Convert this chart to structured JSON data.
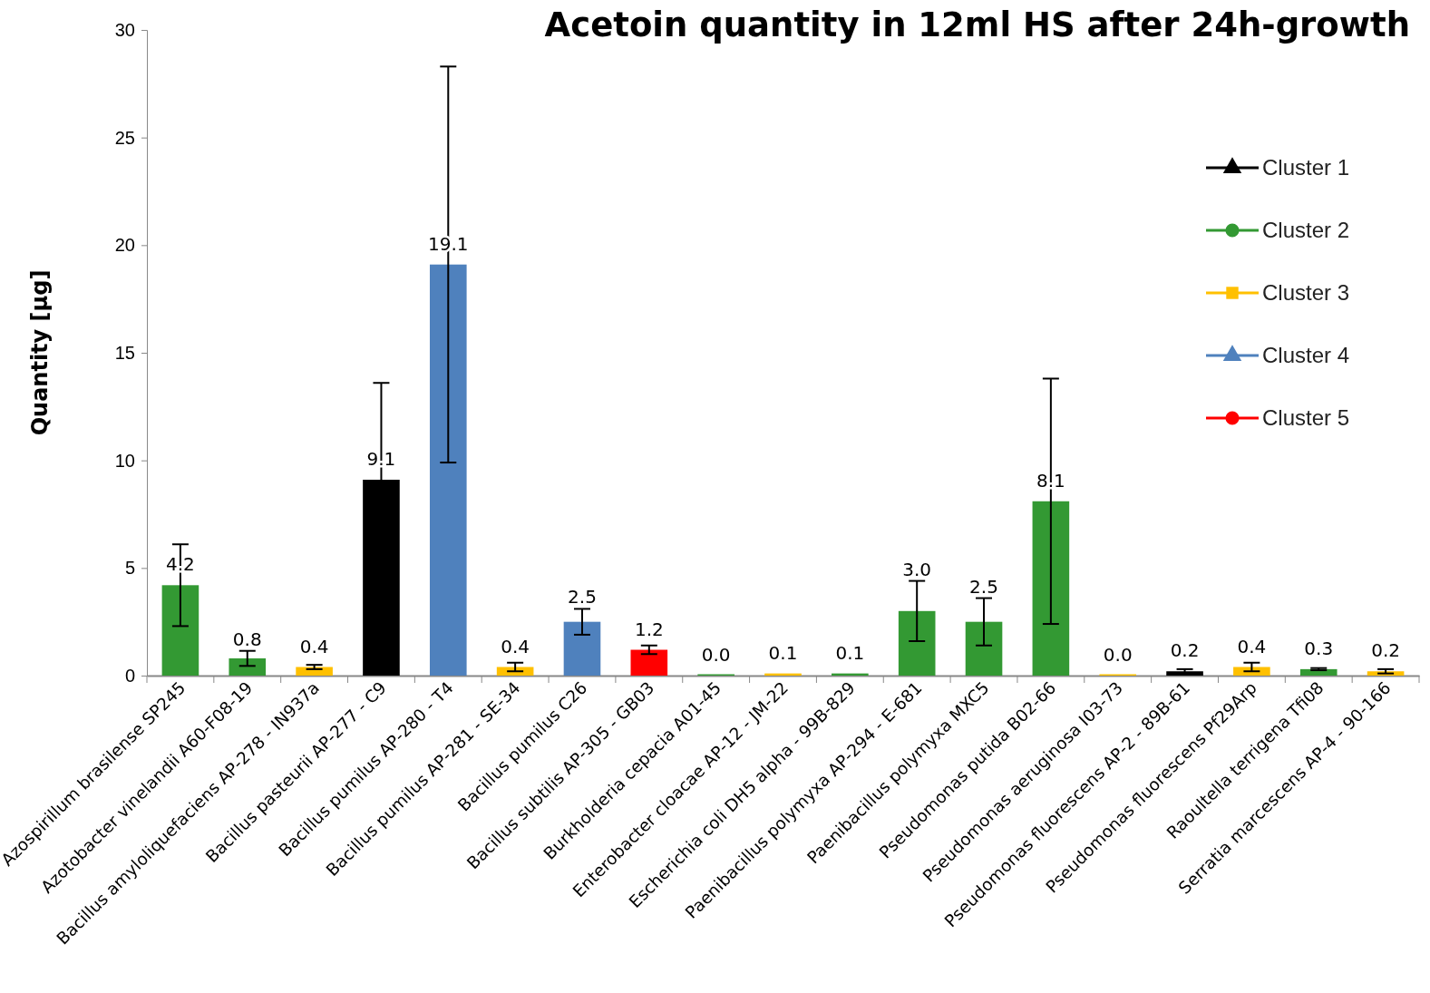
{
  "chart_data": {
    "type": "bar",
    "title": "Acetoin quantity in 12ml HS after 24h-growth",
    "ylabel": "Quantity [µg]",
    "categories": [
      "Azospirillum brasilense SP245",
      "Azotobacter vinelandii A60-F08-19",
      "Bacillus amyloliquefaciens AP-278 - IN937a",
      "Bacillus pasteurii AP-277 - C9",
      "Bacillus pumilus AP-280 - T4",
      "Bacillus pumilus AP-281 - SE-34",
      "Bacillus pumilus C26",
      "Bacillus subtilis AP-305 - GB03",
      "Burkholderia cepacia  A01-45",
      "Enterobacter cloacae AP-12 - JM-22",
      "Escherichia coli DH5 alpha - 99B-829",
      "Paenibacillus polymyxa AP-294 - E-681",
      "Paenibacillus polymyxa MXC5",
      "Pseudomonas putida B02-66",
      "Pseudomonas aeruginosa I03-73",
      "Pseudomonas fluorescens AP-2 - 89B-61",
      "Pseudomonas fluorescens Pf29Arp",
      "Raoultella terrigena Tfi08",
      "Serratia marcescens AP-4 - 90-166"
    ],
    "series": [
      {
        "name": "Cluster 1",
        "color": "#000000",
        "marker": "triangle",
        "values": [
          null,
          null,
          null,
          9.1,
          null,
          null,
          null,
          null,
          null,
          null,
          null,
          null,
          null,
          null,
          null,
          0.2,
          null,
          null,
          null
        ],
        "errors": [
          null,
          null,
          null,
          4.5,
          null,
          null,
          null,
          null,
          null,
          null,
          null,
          null,
          null,
          null,
          null,
          0.1,
          null,
          null,
          null
        ],
        "value_labels": [
          null,
          null,
          null,
          "9.1",
          null,
          null,
          null,
          null,
          null,
          null,
          null,
          null,
          null,
          null,
          null,
          "0.2",
          null,
          null,
          null
        ]
      },
      {
        "name": "Cluster 2",
        "color": "#339933",
        "marker": "circle",
        "values": [
          4.2,
          0.8,
          null,
          null,
          null,
          null,
          null,
          null,
          0.0,
          null,
          0.1,
          3.0,
          2.5,
          8.1,
          null,
          null,
          null,
          0.3,
          null
        ],
        "errors": [
          1.9,
          0.35,
          null,
          null,
          null,
          null,
          null,
          null,
          null,
          null,
          null,
          1.4,
          1.1,
          5.7,
          null,
          null,
          null,
          0.05,
          null
        ],
        "value_labels": [
          "4.2",
          "0.8",
          null,
          null,
          null,
          null,
          null,
          null,
          "0.0",
          null,
          "0.1",
          "3.0",
          "2.5",
          "8.1",
          null,
          null,
          null,
          "0.3",
          null
        ]
      },
      {
        "name": "Cluster 3",
        "color": "#ffc000",
        "marker": "square",
        "values": [
          null,
          null,
          0.4,
          null,
          null,
          0.4,
          null,
          null,
          null,
          0.1,
          null,
          null,
          null,
          null,
          0.0,
          null,
          0.4,
          null,
          0.2
        ],
        "errors": [
          null,
          null,
          0.1,
          null,
          null,
          0.2,
          null,
          null,
          null,
          null,
          null,
          null,
          null,
          null,
          null,
          null,
          0.2,
          null,
          0.1
        ],
        "value_labels": [
          null,
          null,
          "0.4",
          null,
          null,
          "0.4",
          null,
          null,
          null,
          "0.1",
          null,
          null,
          null,
          null,
          "0.0",
          null,
          "0.4",
          null,
          "0.2"
        ]
      },
      {
        "name": "Cluster 4",
        "color": "#4f81bd",
        "marker": "triangle",
        "values": [
          null,
          null,
          null,
          null,
          19.1,
          null,
          2.5,
          null,
          null,
          null,
          null,
          null,
          null,
          null,
          null,
          null,
          null,
          null,
          null
        ],
        "errors": [
          null,
          null,
          null,
          null,
          9.2,
          null,
          0.6,
          null,
          null,
          null,
          null,
          null,
          null,
          null,
          null,
          null,
          null,
          null,
          null
        ],
        "value_labels": [
          null,
          null,
          null,
          null,
          "19.1",
          null,
          "2.5",
          null,
          null,
          null,
          null,
          null,
          null,
          null,
          null,
          null,
          null,
          null,
          null
        ]
      },
      {
        "name": "Cluster 5",
        "color": "#ff0000",
        "marker": "circle",
        "values": [
          null,
          null,
          null,
          null,
          null,
          null,
          null,
          1.2,
          null,
          null,
          null,
          null,
          null,
          null,
          null,
          null,
          null,
          null,
          null
        ],
        "errors": [
          null,
          null,
          null,
          null,
          null,
          null,
          null,
          0.2,
          null,
          null,
          null,
          null,
          null,
          null,
          null,
          null,
          null,
          null,
          null
        ],
        "value_labels": [
          null,
          null,
          null,
          null,
          null,
          null,
          null,
          "1.2",
          null,
          null,
          null,
          null,
          null,
          null,
          null,
          null,
          null,
          null,
          null
        ]
      }
    ],
    "ylim": [
      0,
      30
    ],
    "yticks": [
      0,
      5,
      10,
      15,
      20,
      25,
      30
    ],
    "legend": "right"
  }
}
